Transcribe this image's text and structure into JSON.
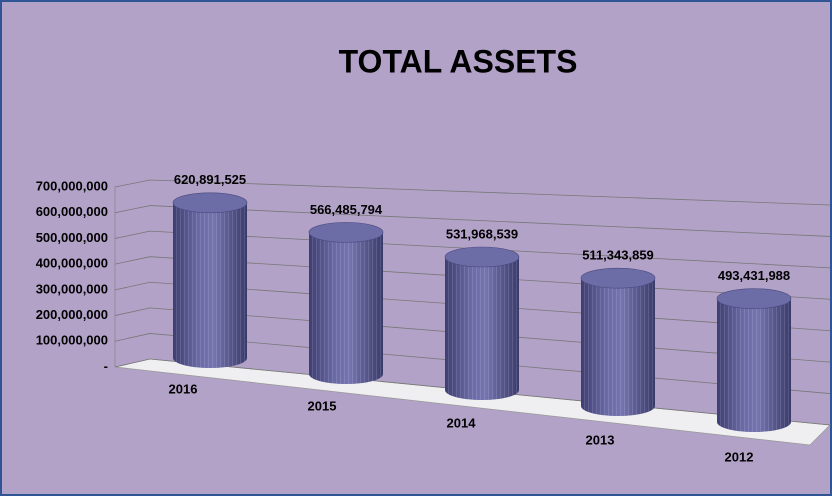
{
  "chart_data": {
    "type": "bar3d",
    "title": "TOTAL ASSETS",
    "categories": [
      "2016",
      "2015",
      "2014",
      "2013",
      "2012"
    ],
    "values": [
      620891525,
      566485794,
      531968539,
      511343859,
      493431988
    ],
    "value_labels": [
      "620,891,525",
      "566,485,794",
      "531,968,539",
      "511,343,859",
      "493,431,988"
    ],
    "color": "#5b5b95",
    "ylim": [
      0,
      700000000
    ],
    "yticks": [
      {
        "value": 0,
        "label": "-"
      },
      {
        "value": 100000000,
        "label": "100,000,000"
      },
      {
        "value": 200000000,
        "label": "200,000,000"
      },
      {
        "value": 300000000,
        "label": "300,000,000"
      },
      {
        "value": 400000000,
        "label": "400,000,000"
      },
      {
        "value": 500000000,
        "label": "500,000,000"
      },
      {
        "value": 600000000,
        "label": "600,000,000"
      },
      {
        "value": 700000000,
        "label": "700,000,000"
      }
    ],
    "grid": true
  }
}
